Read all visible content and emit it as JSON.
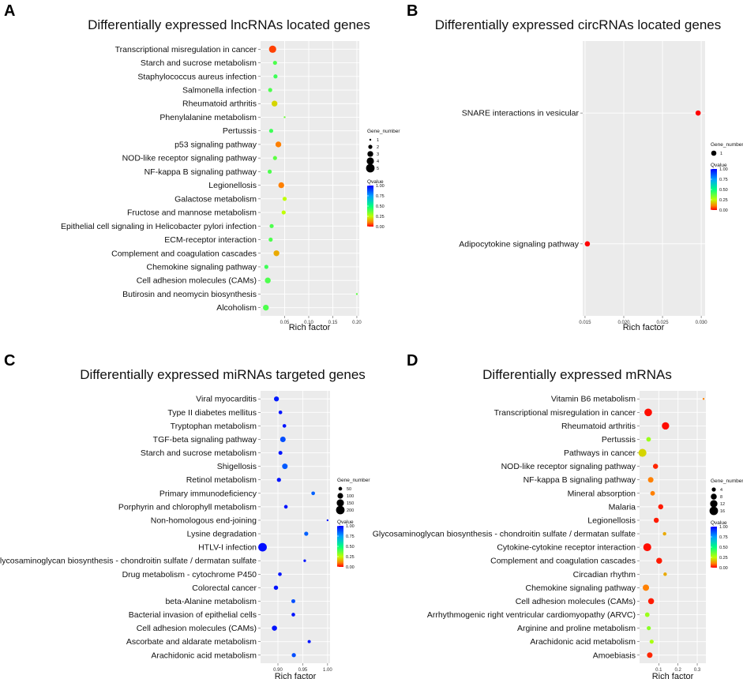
{
  "chart_data": [
    {
      "letter": "A",
      "type": "scatter",
      "title": "Differentially expressed lncRNAs located genes",
      "xlabel": "Rich factor",
      "xlim": [
        0.0,
        0.205
      ],
      "xticks": [
        0.05,
        0.1,
        0.15,
        0.2
      ],
      "xtick_labels": [
        "0.05",
        "0.10",
        "0.15",
        "0.20"
      ],
      "size_legend_title": "Gene_number",
      "size_legend": [
        1,
        2,
        3,
        4,
        5
      ],
      "size_legend_labels": [
        "1",
        "2",
        "3",
        "4",
        "5"
      ],
      "color_legend_title": "Qvalue",
      "color_legend_labels": [
        "1.00",
        "0.75",
        "0.50",
        "0.25",
        "0.00"
      ],
      "points": [
        {
          "label": "Transcriptional misregulation in cancer",
          "x": 0.025,
          "size": 4,
          "q": 0.05
        },
        {
          "label": "Starch and sucrose metabolism",
          "x": 0.03,
          "size": 2,
          "q": 0.4
        },
        {
          "label": "Staphylococcus aureus infection",
          "x": 0.031,
          "size": 2,
          "q": 0.42
        },
        {
          "label": "Salmonella infection",
          "x": 0.02,
          "size": 2,
          "q": 0.4
        },
        {
          "label": "Rheumatoid arthritis",
          "x": 0.029,
          "size": 3,
          "q": 0.2
        },
        {
          "label": "Phenylalanine metabolism",
          "x": 0.05,
          "size": 1,
          "q": 0.36
        },
        {
          "label": "Pertussis",
          "x": 0.022,
          "size": 2,
          "q": 0.42
        },
        {
          "label": "p53 signaling pathway",
          "x": 0.037,
          "size": 3,
          "q": 0.1
        },
        {
          "label": "NOD-like receptor signaling pathway",
          "x": 0.03,
          "size": 2,
          "q": 0.38
        },
        {
          "label": "NF-kappa B signaling pathway",
          "x": 0.019,
          "size": 2,
          "q": 0.4
        },
        {
          "label": "Legionellosis",
          "x": 0.043,
          "size": 3,
          "q": 0.1
        },
        {
          "label": "Galactose metabolism",
          "x": 0.05,
          "size": 2,
          "q": 0.25
        },
        {
          "label": "Fructose and mannose metabolism",
          "x": 0.048,
          "size": 2,
          "q": 0.25
        },
        {
          "label": "Epithelial cell signaling in Helicobacter pylori infection",
          "x": 0.023,
          "size": 2,
          "q": 0.4
        },
        {
          "label": "ECM-receptor interaction",
          "x": 0.021,
          "size": 2,
          "q": 0.4
        },
        {
          "label": "Complement and coagulation cascades",
          "x": 0.033,
          "size": 3,
          "q": 0.15
        },
        {
          "label": "Chemokine signaling pathway",
          "x": 0.012,
          "size": 2,
          "q": 0.42
        },
        {
          "label": "Cell adhesion molecules (CAMs)",
          "x": 0.015,
          "size": 3,
          "q": 0.4
        },
        {
          "label": "Butirosin and neomycin biosynthesis",
          "x": 0.2,
          "size": 1,
          "q": 0.38
        },
        {
          "label": "Alcoholism",
          "x": 0.011,
          "size": 3,
          "q": 0.4
        }
      ]
    },
    {
      "letter": "B",
      "type": "scatter",
      "title": "Differentially expressed circRNAs located genes",
      "xlabel": "Rich factor",
      "xlim": [
        0.0147,
        0.0305
      ],
      "xticks": [
        0.015,
        0.02,
        0.025,
        0.03
      ],
      "xtick_labels": [
        "0.015",
        "0.020",
        "0.025",
        "0.030"
      ],
      "size_legend_title": "Gene_number",
      "size_legend": [
        1
      ],
      "size_legend_labels": [
        "1"
      ],
      "color_legend_title": "Qvalue",
      "color_legend_labels": [
        "1.00",
        "0.75",
        "0.50",
        "0.25",
        "0.00"
      ],
      "points": [
        {
          "label": "SNARE interactions in vesicular",
          "x": 0.0296,
          "size": 1,
          "q": 0.0
        },
        {
          "label": "Adipocytokine signaling pathway",
          "x": 0.0153,
          "size": 1,
          "q": 0.0
        }
      ]
    },
    {
      "letter": "C",
      "type": "scatter",
      "title": "Differentially expressed miRNAs targeted genes",
      "xlabel": "Rich factor",
      "xlim": [
        0.865,
        1.005
      ],
      "xticks": [
        0.9,
        0.95,
        1.0
      ],
      "xtick_labels": [
        "0.90",
        "0.95",
        "1.00"
      ],
      "size_legend_title": "Gene_number",
      "size_legend": [
        50,
        100,
        150,
        200
      ],
      "size_legend_labels": [
        "50",
        "100",
        "150",
        "200"
      ],
      "color_legend_title": "Qvalue",
      "color_legend_labels": [
        "1.00",
        "0.75",
        "0.50",
        "0.25",
        "0.00"
      ],
      "points": [
        {
          "label": "Viral myocarditis",
          "x": 0.897,
          "size": 80,
          "q": 0.96
        },
        {
          "label": "Type II diabetes mellitus",
          "x": 0.905,
          "size": 50,
          "q": 0.97
        },
        {
          "label": "Tryptophan metabolism",
          "x": 0.913,
          "size": 50,
          "q": 0.97
        },
        {
          "label": "TGF-beta signaling pathway",
          "x": 0.91,
          "size": 95,
          "q": 0.88
        },
        {
          "label": "Starch and sucrose metabolism",
          "x": 0.905,
          "size": 55,
          "q": 0.97
        },
        {
          "label": "Shigellosis",
          "x": 0.914,
          "size": 95,
          "q": 0.86
        },
        {
          "label": "Retinol metabolism",
          "x": 0.902,
          "size": 60,
          "q": 0.97
        },
        {
          "label": "Primary immunodeficiency",
          "x": 0.971,
          "size": 50,
          "q": 0.85
        },
        {
          "label": "Porphyrin and chlorophyll metabolism",
          "x": 0.916,
          "size": 50,
          "q": 0.97
        },
        {
          "label": "Non-homologous end-joining",
          "x": 1.0,
          "size": 20,
          "q": 0.97
        },
        {
          "label": "Lysine degradation",
          "x": 0.957,
          "size": 60,
          "q": 0.85
        },
        {
          "label": "HTLV-I infection",
          "x": 0.869,
          "size": 200,
          "q": 0.98
        },
        {
          "label": "Glycosaminoglycan biosynthesis - chondroitin sulfate / dermatan sulfate",
          "x": 0.954,
          "size": 30,
          "q": 0.97
        },
        {
          "label": "Drug metabolism - cytochrome P450",
          "x": 0.904,
          "size": 50,
          "q": 0.97
        },
        {
          "label": "Colorectal cancer",
          "x": 0.896,
          "size": 65,
          "q": 0.97
        },
        {
          "label": "beta-Alanine metabolism",
          "x": 0.931,
          "size": 55,
          "q": 0.88
        },
        {
          "label": "Bacterial invasion of epithelial cells",
          "x": 0.931,
          "size": 50,
          "q": 0.97
        },
        {
          "label": "Cell adhesion molecules (CAMs)",
          "x": 0.893,
          "size": 85,
          "q": 0.97
        },
        {
          "label": "Ascorbate and aldarate metabolism",
          "x": 0.963,
          "size": 40,
          "q": 0.97
        },
        {
          "label": "Arachidonic acid metabolism",
          "x": 0.932,
          "size": 60,
          "q": 0.88
        }
      ]
    },
    {
      "letter": "D",
      "type": "scatter",
      "title": "Differentially expressed mRNAs",
      "xlabel": "Rich factor",
      "xlim": [
        0.0,
        0.345
      ],
      "xticks": [
        0.1,
        0.2,
        0.3
      ],
      "xtick_labels": [
        "0.1",
        "0.2",
        "0.3"
      ],
      "size_legend_title": "Gene_number",
      "size_legend": [
        4,
        8,
        12,
        16
      ],
      "size_legend_labels": [
        "4",
        "8",
        "12",
        "16"
      ],
      "color_legend_title": "Qvalue",
      "color_legend_labels": [
        "1.00",
        "0.75",
        "0.50",
        "0.25",
        "0.00"
      ],
      "points": [
        {
          "label": "Vitamin B6 metabolism",
          "x": 0.333,
          "size": 1,
          "q": 0.1
        },
        {
          "label": "Transcriptional misregulation in cancer",
          "x": 0.045,
          "size": 13,
          "q": 0.01
        },
        {
          "label": "Rheumatoid arthritis",
          "x": 0.135,
          "size": 12,
          "q": 0.01
        },
        {
          "label": "Pertussis",
          "x": 0.047,
          "size": 5,
          "q": 0.3
        },
        {
          "label": "Pathways in cancer",
          "x": 0.015,
          "size": 14,
          "q": 0.2
        },
        {
          "label": "NOD-like receptor signaling pathway",
          "x": 0.083,
          "size": 6,
          "q": 0.03
        },
        {
          "label": "NF-kappa B signaling pathway",
          "x": 0.058,
          "size": 7,
          "q": 0.1
        },
        {
          "label": "Mineral absorption",
          "x": 0.068,
          "size": 5,
          "q": 0.1
        },
        {
          "label": "Malaria",
          "x": 0.11,
          "size": 6,
          "q": 0.02
        },
        {
          "label": "Legionellosis",
          "x": 0.087,
          "size": 6,
          "q": 0.02
        },
        {
          "label": "Glycosaminoglycan biosynthesis - chondroitin sulfate / dermatan sulfate",
          "x": 0.13,
          "size": 3,
          "q": 0.15
        },
        {
          "label": "Cytokine-cytokine receptor interaction",
          "x": 0.04,
          "size": 14,
          "q": 0.01
        },
        {
          "label": "Complement and coagulation cascades",
          "x": 0.102,
          "size": 8,
          "q": 0.02
        },
        {
          "label": "Circadian rhythm",
          "x": 0.133,
          "size": 3,
          "q": 0.15
        },
        {
          "label": "Chemokine signaling pathway",
          "x": 0.033,
          "size": 9,
          "q": 0.1
        },
        {
          "label": "Cell adhesion molecules (CAMs)",
          "x": 0.06,
          "size": 8,
          "q": 0.02
        },
        {
          "label": "Arrhythmogenic right ventricular cardiomyopathy (ARVC)",
          "x": 0.04,
          "size": 5,
          "q": 0.3
        },
        {
          "label": "Arginine and proline metabolism",
          "x": 0.048,
          "size": 4,
          "q": 0.32
        },
        {
          "label": "Arachidonic acid metabolism",
          "x": 0.063,
          "size": 4,
          "q": 0.28
        },
        {
          "label": "Amoebiasis",
          "x": 0.053,
          "size": 7,
          "q": 0.03
        }
      ]
    }
  ]
}
